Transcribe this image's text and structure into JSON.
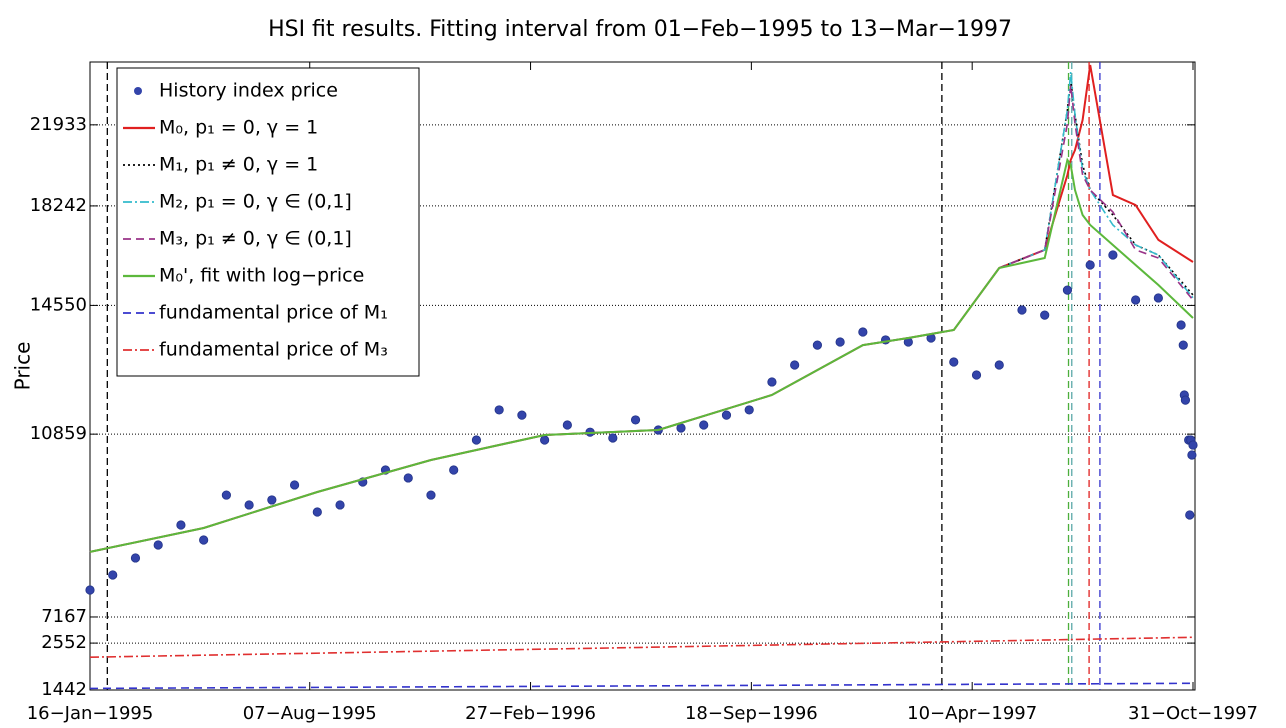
{
  "chart_data": [
    {
      "type": "line",
      "title": "HSI fit results. Fitting interval from 01−Feb−1995 to 13−Mar−1997",
      "ylabel": "Price",
      "yscale": "log",
      "ylim": [
        6950,
        25300
      ],
      "yticks": [
        7167,
        10859,
        14550,
        18242,
        21933
      ],
      "grid": true,
      "legend": "upper left",
      "xlim": [
        "1995-01-16",
        "1997-10-31"
      ],
      "xticks": [
        {
          "value": "1995-01-16",
          "label": "16−Jan−1995"
        },
        {
          "value": "1995-08-07",
          "label": "07−Aug−1995"
        },
        {
          "value": "1996-02-27",
          "label": "27−Feb−1996"
        },
        {
          "value": "1996-09-18",
          "label": "18−Sep−1996"
        },
        {
          "value": "1997-04-10",
          "label": "10−Apr−1997"
        },
        {
          "value": "1997-10-31",
          "label": "31−Oct−1997"
        }
      ],
      "vlines": [
        {
          "x": "1995-02-01",
          "color": "#000000"
        },
        {
          "x": "1997-03-13",
          "color": "#000000"
        },
        {
          "x": "1997-07-08",
          "color": "#4caf3c"
        },
        {
          "x": "1997-07-11",
          "color": "#5aa8a8"
        },
        {
          "x": "1997-07-27",
          "color": "#e02020"
        },
        {
          "x": "1997-08-06",
          "color": "#3333cc"
        }
      ],
      "x": [
        "1995-01-16",
        "1995-05-01",
        "1995-08-14",
        "1995-11-27",
        "1996-03-11",
        "1996-06-24",
        "1996-10-07",
        "1996-12-30",
        "1997-02-10",
        "1997-03-24",
        "1997-05-05",
        "1997-06-16",
        "1997-07-07",
        "1997-07-10",
        "1997-07-14",
        "1997-07-21",
        "1997-07-28",
        "1997-08-18",
        "1997-09-08",
        "1997-09-29",
        "1997-10-31"
      ],
      "series": [
        {
          "name": "History index price",
          "color": "#3344aa",
          "style": "markers",
          "x": [
            "1995-01-16",
            "1995-02-06",
            "1995-02-27",
            "1995-03-20",
            "1995-04-10",
            "1995-05-01",
            "1995-05-22",
            "1995-06-12",
            "1995-07-03",
            "1995-07-24",
            "1995-08-14",
            "1995-09-04",
            "1995-09-25",
            "1995-10-16",
            "1995-11-06",
            "1995-11-27",
            "1995-12-18",
            "1996-01-08",
            "1996-01-29",
            "1996-02-19",
            "1996-03-11",
            "1996-04-01",
            "1996-04-22",
            "1996-05-13",
            "1996-06-03",
            "1996-06-24",
            "1996-07-15",
            "1996-08-05",
            "1996-08-26",
            "1996-09-16",
            "1996-10-07",
            "1996-10-28",
            "1996-11-18",
            "1996-12-09",
            "1996-12-30",
            "1997-01-20",
            "1997-02-10",
            "1997-03-03",
            "1997-03-24",
            "1997-04-14",
            "1997-05-05",
            "1997-05-26",
            "1997-06-16",
            "1997-07-07",
            "1997-07-28",
            "1997-08-18",
            "1997-09-08",
            "1997-09-29",
            "1997-10-20",
            "1997-10-22",
            "1997-10-23",
            "1997-10-24",
            "1997-10-27",
            "1997-10-28",
            "1997-10-29",
            "1997-10-30",
            "1997-10-31"
          ],
          "values": [
            7620,
            7885,
            8196,
            8441,
            8833,
            8537,
            9455,
            9245,
            9351,
            9675,
            9098,
            9245,
            9740,
            10009,
            9830,
            9455,
            10009,
            10715,
            11474,
            11338,
            10715,
            11087,
            10908,
            10765,
            11216,
            10962,
            11012,
            11087,
            11338,
            11474,
            12227,
            12707,
            13295,
            13388,
            13696,
            13452,
            13388,
            13510,
            12793,
            12421,
            12707,
            14398,
            14233,
            15065,
            15950,
            16317,
            14731,
            14799,
            13916,
            13295,
            11869,
            11732,
            10715,
            9037,
            10715,
            10357,
            10593
          ]
        },
        {
          "name": "M₀, p₁ = 0, γ = 1",
          "color": "#e02020",
          "style": "solid",
          "values": [
            8309,
            8774,
            9521,
            10240,
            10837,
            10962,
            11869,
            13295,
            13510,
            13760,
            15840,
            16505,
            19570,
            20250,
            20710,
            22175,
            25130,
            18700,
            18276,
            16885,
            16060
          ]
        },
        {
          "name": "M₁, p₁ ≠ 0, γ = 1",
          "color": "#000000",
          "style": "dotted",
          "values": [
            8309,
            8774,
            9521,
            10240,
            10837,
            10962,
            11869,
            13295,
            13510,
            13760,
            15840,
            16505,
            22683,
            24288,
            22432,
            20018,
            18914,
            17870,
            16692,
            16317,
            14900
          ]
        },
        {
          "name": "M₂, p₁ = 0, γ ∈ (0,1]",
          "color": "#33bbcc",
          "style": "dashdot",
          "values": [
            8309,
            8774,
            9521,
            10240,
            10837,
            10962,
            11869,
            13295,
            13510,
            13760,
            15840,
            16505,
            22683,
            24733,
            22432,
            19795,
            18914,
            17467,
            16692,
            16317,
            14799
          ]
        },
        {
          "name": "M₃, p₁ ≠ 0, γ ∈ (0,1]",
          "color": "#993388",
          "style": "dashed",
          "values": [
            8309,
            8774,
            9521,
            10240,
            10837,
            10962,
            11869,
            13295,
            13510,
            13760,
            15840,
            16505,
            22000,
            24010,
            22000,
            19570,
            18914,
            17992,
            16505,
            16205,
            14731
          ]
        },
        {
          "name": "M₀', fit with log−price",
          "color": "#5cb83c",
          "style": "solid",
          "values": [
            8309,
            8774,
            9521,
            10240,
            10837,
            10962,
            11869,
            13295,
            13510,
            13760,
            15840,
            16205,
            20250,
            20018,
            18914,
            17870,
            17467,
            16692,
            15950,
            15241,
            14140
          ]
        }
      ]
    },
    {
      "type": "line",
      "ylim": [
        1442,
        2850
      ],
      "yticks": [
        1442,
        2552
      ],
      "grid": true,
      "x": [
        "1995-01-16",
        "1996-06-09",
        "1997-10-31"
      ],
      "series": [
        {
          "name": "fundamental price of M₁",
          "color": "#3333cc",
          "style": "dashed",
          "values": [
            1480,
            1540,
            1600
          ]
        },
        {
          "name": "fundamental price of M₃",
          "color": "#e03030",
          "style": "dashdot",
          "values": [
            2218,
            2450,
            2688
          ]
        }
      ]
    }
  ]
}
